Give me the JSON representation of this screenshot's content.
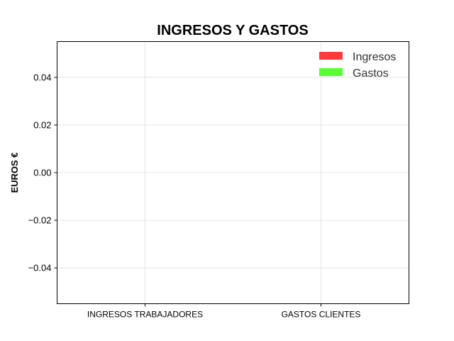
{
  "chart_data": {
    "type": "bar",
    "title": "INGRESOS Y GASTOS",
    "xlabel": "",
    "ylabel": "EUROS €",
    "categories": [
      "INGRESOS TRABAJADORES",
      "GASTOS CLIENTES"
    ],
    "series": [
      {
        "name": "Ingresos",
        "color": "#ff3b3b",
        "values": [
          0,
          0
        ]
      },
      {
        "name": "Gastos",
        "color": "#55ff33",
        "values": [
          0,
          0
        ]
      }
    ],
    "ylim": [
      -0.055,
      0.055
    ],
    "yticks": [
      0.04,
      0.02,
      0.0,
      -0.02,
      -0.04
    ],
    "ytick_labels": [
      "0.04",
      "0.02",
      "0.00",
      "−0.02",
      "−0.04"
    ],
    "grid": true,
    "legend_position": "top-right"
  }
}
